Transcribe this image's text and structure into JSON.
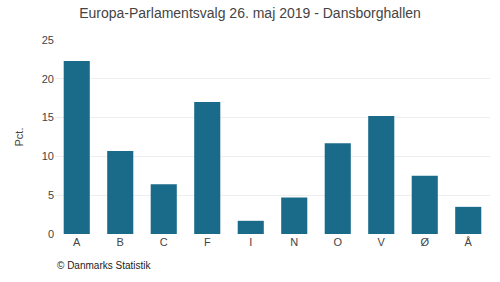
{
  "chart_data": {
    "type": "bar",
    "title": "Europa-Parlamentsvalg 26. maj 2019 - Dansborghallen",
    "ylabel": "Pct.",
    "annotations": [
      "© Danmarks Statistik"
    ],
    "categories": [
      "A",
      "B",
      "C",
      "F",
      "I",
      "N",
      "O",
      "V",
      "Ø",
      "Å"
    ],
    "values": [
      22.3,
      10.7,
      6.4,
      17.0,
      1.7,
      4.7,
      11.7,
      15.2,
      7.5,
      3.5
    ],
    "color": "#1a6b8a",
    "ylim": [
      0,
      25
    ],
    "yticks": [
      0,
      5,
      10,
      15,
      20,
      25
    ],
    "grid": true
  }
}
